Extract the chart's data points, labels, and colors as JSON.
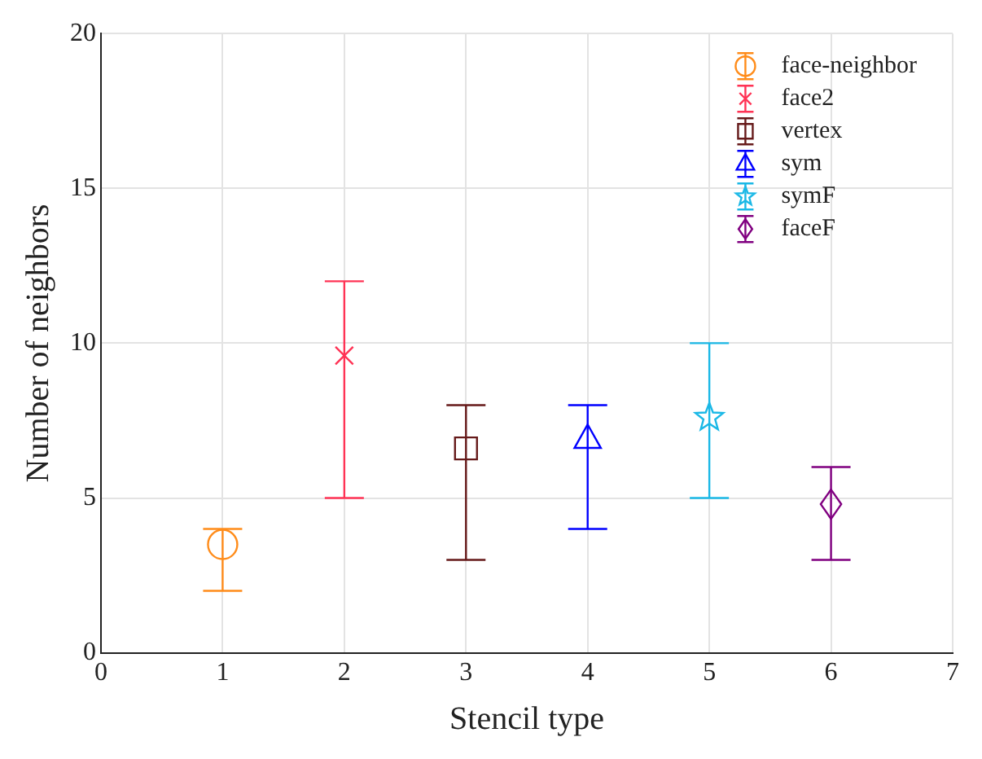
{
  "chart_data": {
    "type": "scatter",
    "xlabel": "Stencil type",
    "ylabel": "Number of neighbors",
    "xlim": [
      0,
      7
    ],
    "xticks": [
      0,
      1,
      2,
      3,
      4,
      5,
      6,
      7
    ],
    "ylim": [
      0,
      20
    ],
    "yticks": [
      0,
      5,
      10,
      15,
      20
    ],
    "grid": true,
    "legend": "top right",
    "series": [
      {
        "name": "face-neighbor",
        "color": "#ff8c1a",
        "marker": "circle",
        "x": [
          1
        ],
        "values": [
          3.5
        ],
        "errors": [
          [
            2,
            4
          ]
        ]
      },
      {
        "name": "face2",
        "color": "#ff3355",
        "marker": "cross",
        "x": [
          2
        ],
        "values": [
          9.6
        ],
        "errors": [
          [
            5,
            12
          ]
        ]
      },
      {
        "name": "vertex",
        "color": "#661a1a",
        "marker": "square",
        "x": [
          3
        ],
        "values": [
          6.6
        ],
        "errors": [
          [
            3,
            8
          ]
        ]
      },
      {
        "name": "sym",
        "color": "#0000ff",
        "marker": "triangle",
        "x": [
          4
        ],
        "values": [
          6.9
        ],
        "errors": [
          [
            4,
            8
          ]
        ]
      },
      {
        "name": "symF",
        "color": "#1ab8e6",
        "marker": "star",
        "x": [
          5
        ],
        "values": [
          7.6
        ],
        "errors": [
          [
            5,
            10
          ]
        ]
      },
      {
        "name": "faceF",
        "color": "#800080",
        "marker": "diamond",
        "x": [
          6
        ],
        "values": [
          4.8
        ],
        "errors": [
          [
            3,
            6
          ]
        ]
      }
    ]
  }
}
